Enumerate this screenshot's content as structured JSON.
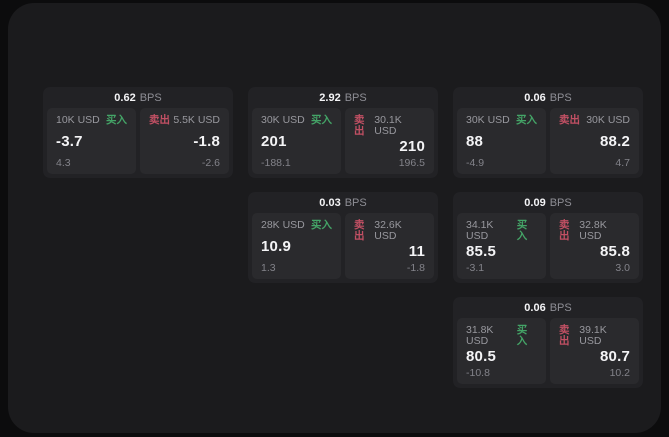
{
  "theme": {
    "page_bg": "#0c0c0d",
    "panel_bg": "#1b1b1d",
    "card_bg": "#222225",
    "tile_bg": "#2a2a2d",
    "buy_color": "#44a467",
    "sell_color": "#c25064",
    "label_color": "#98989e",
    "value_color": "#f4f4f6",
    "delta_color": "#83838a"
  },
  "labels": {
    "bps": "BPS",
    "buy": "买入",
    "sell": "卖出"
  },
  "cards": [
    {
      "bps": "0.62",
      "buy": {
        "notional": "10K USD",
        "price": "-3.7",
        "delta": "4.3"
      },
      "sell": {
        "notional": "5.5K USD",
        "price": "-1.8",
        "delta": "-2.6"
      }
    },
    {
      "bps": "2.92",
      "buy": {
        "notional": "30K USD",
        "price": "201",
        "delta": "-188.1"
      },
      "sell": {
        "notional": "30.1K USD",
        "price": "210",
        "delta": "196.5"
      }
    },
    {
      "bps": "0.06",
      "buy": {
        "notional": "30K USD",
        "price": "88",
        "delta": "-4.9"
      },
      "sell": {
        "notional": "30K USD",
        "price": "88.2",
        "delta": "4.7"
      }
    },
    {
      "bps": "0.03",
      "buy": {
        "notional": "28K USD",
        "price": "10.9",
        "delta": "1.3"
      },
      "sell": {
        "notional": "32.6K USD",
        "price": "11",
        "delta": "-1.8"
      }
    },
    {
      "bps": "0.09",
      "buy": {
        "notional": "34.1K USD",
        "price": "85.5",
        "delta": "-3.1"
      },
      "sell": {
        "notional": "32.8K USD",
        "price": "85.8",
        "delta": "3.0"
      }
    },
    {
      "bps": "0.06",
      "buy": {
        "notional": "31.8K USD",
        "price": "80.5",
        "delta": "-10.8"
      },
      "sell": {
        "notional": "39.1K USD",
        "price": "80.7",
        "delta": "10.2"
      }
    }
  ]
}
